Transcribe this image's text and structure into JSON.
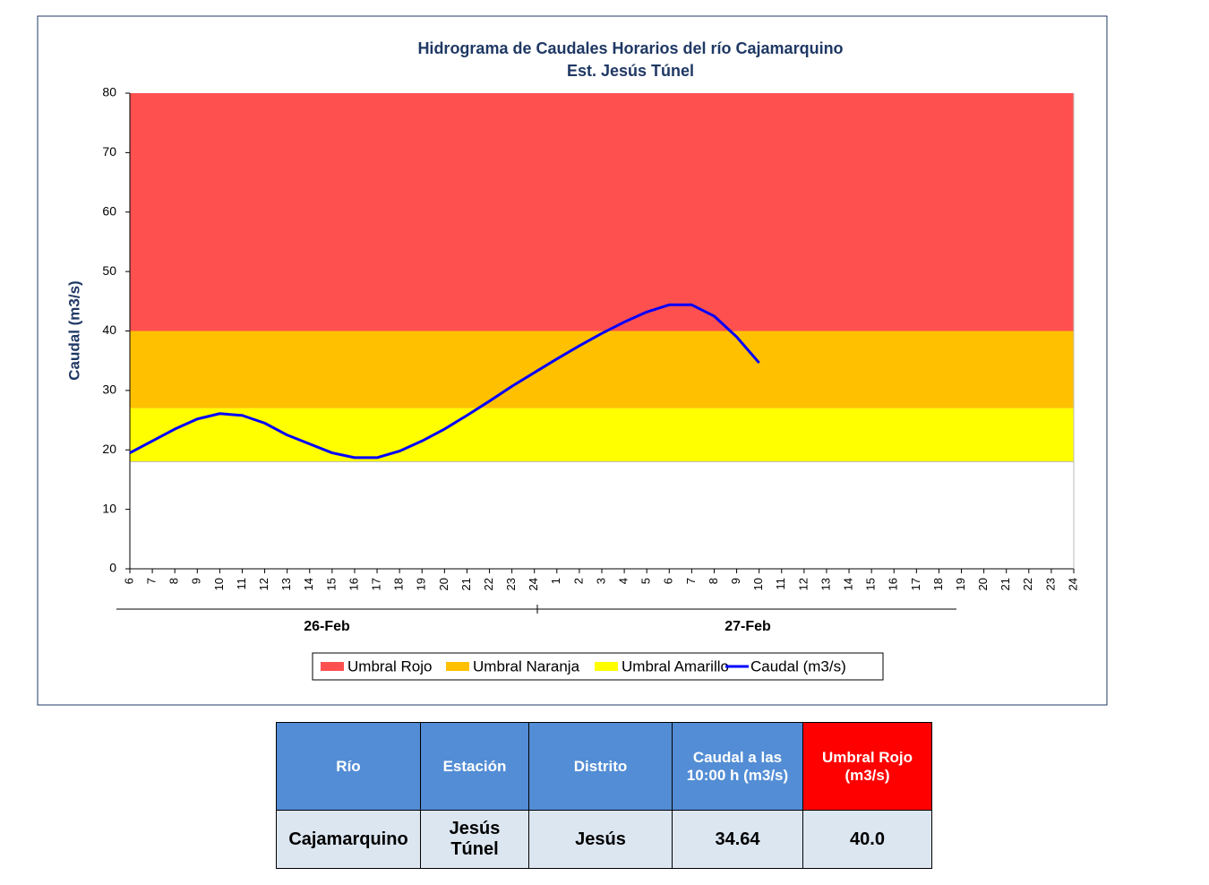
{
  "chart_data": {
    "type": "line",
    "title": "Hidrograma  de Caudales Horarios  del río Cajamarquino",
    "subtitle": "Est. Jesús Túnel",
    "y_label": "Caudal (m3/s)",
    "categories": [
      "6",
      "7",
      "8",
      "9",
      "10",
      "11",
      "12",
      "13",
      "14",
      "15",
      "16",
      "17",
      "18",
      "19",
      "20",
      "21",
      "22",
      "23",
      "24",
      "1",
      "2",
      "3",
      "4",
      "5",
      "6",
      "7",
      "8",
      "9",
      "10",
      "11",
      "12",
      "13",
      "14",
      "15",
      "16",
      "17",
      "18",
      "19",
      "20",
      "21",
      "22",
      "23",
      "24"
    ],
    "groups": [
      "26-Feb",
      "27-Feb"
    ],
    "ylim": [
      0,
      80
    ],
    "yticks": [
      0,
      10,
      20,
      30,
      40,
      50,
      60,
      70,
      80
    ],
    "bands": [
      {
        "name": "Umbral Rojo",
        "color": "#ff5050",
        "from": 40,
        "to": 80
      },
      {
        "name": "Umbral Naranja",
        "color": "#ffc000",
        "from": 27,
        "to": 40
      },
      {
        "name": "Umbral Amarillo",
        "color": "#ffff00",
        "from": 18,
        "to": 27
      }
    ],
    "series": [
      {
        "name": "Caudal (m3/s)",
        "color": "#0000ff",
        "values": [
          19.5,
          21.5,
          23.5,
          25.2,
          26.1,
          25.8,
          24.5,
          22.5,
          21,
          19.5,
          18.7,
          18.7,
          19.8,
          21.5,
          23.5,
          25.8,
          28.2,
          30.7,
          33,
          35.3,
          37.5,
          39.6,
          41.5,
          43.2,
          44.4,
          44.4,
          42.5,
          39,
          34.64,
          null,
          null,
          null,
          null,
          null,
          null,
          null,
          null,
          null,
          null,
          null,
          null,
          null,
          null
        ]
      }
    ]
  },
  "table": {
    "header": [
      "Río",
      "Estación",
      "Distrito",
      "Caudal a las 10:00 h (m3/s)",
      "Umbral Rojo (m3/s)"
    ],
    "rows": [
      [
        "Cajamarquino",
        "Jesús Túnel",
        "Jesús",
        "34.64",
        "40.0"
      ]
    ]
  }
}
